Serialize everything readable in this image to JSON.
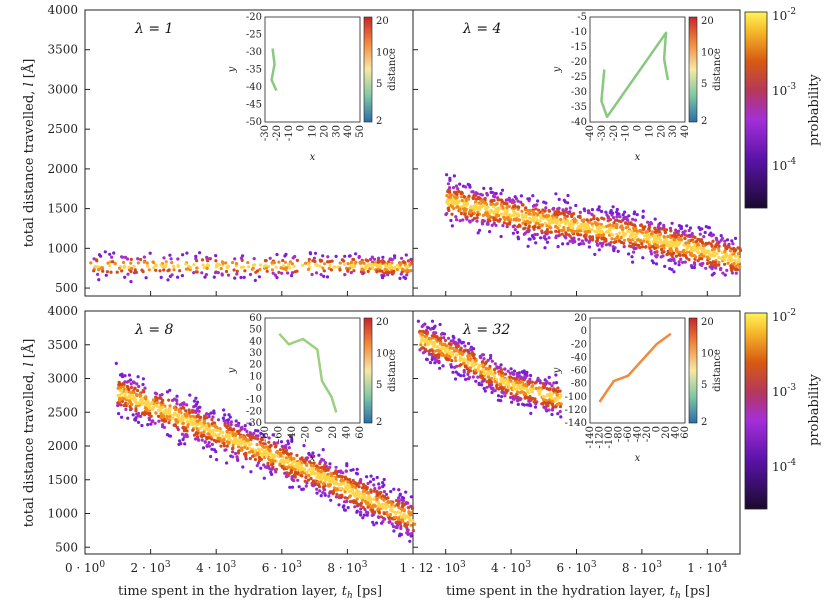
{
  "chart_data": {
    "type": "scatter",
    "common": {
      "xlabel": "time spent in the hydration layer, t_h [ps]",
      "xlabel_prefix": "time spent in the hydration layer, ",
      "xlabel_var": "t",
      "xlabel_sub": "h",
      "xlabel_unit": " [ps]",
      "ylabel": "total distance travelled, l [Å]",
      "ylabel_prefix": "total distance travelled, ",
      "ylabel_var": "l",
      "ylabel_unit": " [Å]",
      "ylim": [
        400,
        4000
      ],
      "yticks": [
        "4000",
        "3500",
        "3000",
        "2500",
        "2000",
        "1500",
        "1000",
        "500"
      ],
      "colorbar_label": "probability",
      "colorbar_ticks": [
        "10^-2",
        "10^-3",
        "10^-4"
      ],
      "colors": {
        "low": "#1a0a2e",
        "mid1": "#8a2be2",
        "mid2": "#d2491d",
        "high": "#ffd700",
        "top": "#fffb7a",
        "inset": "#88c97e"
      }
    },
    "left_xticks": [
      "0 · 10^0",
      "2 · 10^3",
      "4 · 10^3",
      "6 · 10^3",
      "8 · 10^3",
      "1 · 1"
    ],
    "right_xticks": [
      "2 · 10^3",
      "4 · 10^3",
      "6 · 10^3",
      "8 · 10^3",
      "1 · 10^4"
    ],
    "panels": [
      {
        "label": "λ = 1",
        "lambda": "1",
        "inset": {
          "xlabel": "x",
          "ylabel": "y",
          "xticks": [
            "-30",
            "-20",
            "-10",
            "0",
            "10",
            "20",
            "30",
            "40",
            "50"
          ],
          "yticks": [
            "-20",
            "-25",
            "-30",
            "-35",
            "-40",
            "-45",
            "-50"
          ],
          "cbar_label": "distance",
          "cbar_ticks": [
            "20",
            "10",
            "5",
            "2"
          ]
        },
        "data": {
          "trend": [
            [
              200,
              780
            ],
            [
              4000,
              780
            ],
            [
              8000,
              780
            ],
            [
              10000,
              760
            ]
          ]
        }
      },
      {
        "label": "λ = 4",
        "lambda": "4",
        "inset": {
          "xlabel": "x",
          "ylabel": "y",
          "xticks": [
            "-40",
            "-30",
            "-20",
            "-10",
            "0",
            "10",
            "20",
            "30",
            "40"
          ],
          "yticks": [
            "-5",
            "-10",
            "-15",
            "-20",
            "-25",
            "-30",
            "-35",
            "-40"
          ],
          "cbar_label": "distance",
          "cbar_ticks": [
            "20",
            "10",
            "5",
            "2"
          ]
        },
        "data": {
          "trend": [
            [
              1000,
              1600
            ],
            [
              4000,
              1350
            ],
            [
              7000,
              1150
            ],
            [
              10000,
              850
            ]
          ]
        }
      },
      {
        "label": "λ = 8",
        "lambda": "8",
        "inset": {
          "xlabel": "x",
          "ylabel": "y",
          "xticks": [
            "-80",
            "-60",
            "-40",
            "-20",
            "0",
            "20",
            "40",
            "60"
          ],
          "yticks": [
            "60",
            "50",
            "40",
            "30",
            "20",
            "10",
            "0",
            "-10",
            "-20",
            "-30"
          ],
          "cbar_label": "distance",
          "cbar_ticks": [
            "20",
            "10",
            "5",
            "2"
          ]
        },
        "data": {
          "trend": [
            [
              1000,
              2800
            ],
            [
              4000,
              2200
            ],
            [
              7000,
              1600
            ],
            [
              10000,
              900
            ]
          ]
        }
      },
      {
        "label": "λ = 32",
        "lambda": "32",
        "inset": {
          "xlabel": "x",
          "ylabel": "y",
          "xticks": [
            "-140",
            "-120",
            "-100",
            "-80",
            "-60",
            "-40",
            "-20",
            "0",
            "20",
            "40",
            "60"
          ],
          "yticks": [
            "20",
            "0",
            "-20",
            "-40",
            "-60",
            "-80",
            "-100",
            "-120",
            "-140"
          ],
          "cbar_label": "distance",
          "cbar_ticks": [
            "20",
            "10",
            "5",
            "2"
          ]
        },
        "data": {
          "trend": [
            [
              200,
              3600
            ],
            [
              1500,
              3300
            ],
            [
              3000,
              2900
            ],
            [
              4500,
              2700
            ]
          ]
        }
      }
    ]
  }
}
